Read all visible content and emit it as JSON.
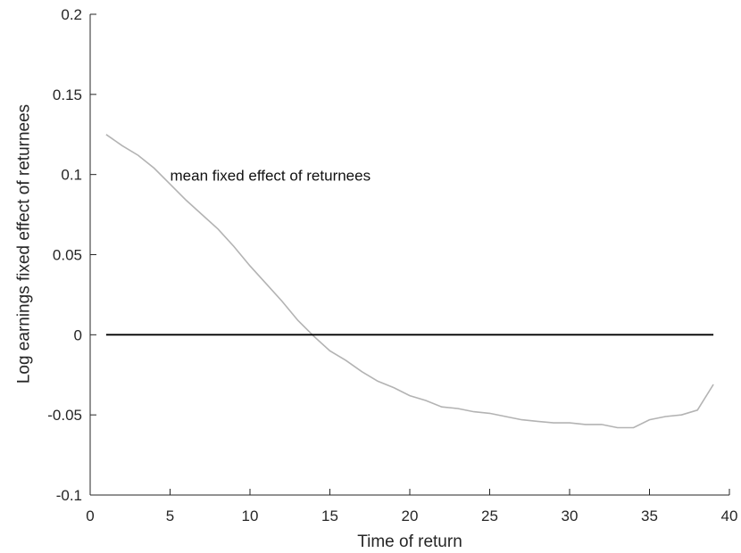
{
  "chart_data": {
    "type": "line",
    "xlabel": "Time of return",
    "ylabel": "Log earnings fixed effect of returnees",
    "xlim": [
      0,
      40
    ],
    "ylim": [
      -0.1,
      0.2
    ],
    "x_ticks": [
      0,
      5,
      10,
      15,
      20,
      25,
      30,
      35,
      40
    ],
    "x_tick_labels": [
      "0",
      "5",
      "10",
      "15",
      "20",
      "25",
      "30",
      "35",
      "40"
    ],
    "y_ticks": [
      -0.1,
      -0.05,
      0,
      0.05,
      0.1,
      0.15,
      0.2
    ],
    "y_tick_labels": [
      "-0.1",
      "-0.05",
      "0",
      "0.05",
      "0.1",
      "0.15",
      "0.2"
    ],
    "grid": false,
    "box": false,
    "annotations": [
      {
        "text": "mean fixed effect of returnees",
        "x": 5,
        "y": 0.1
      }
    ],
    "series": [
      {
        "color": "#b3b3b3",
        "x": [
          1,
          2,
          3,
          4,
          5,
          6,
          7,
          8,
          9,
          10,
          11,
          12,
          13,
          14,
          15,
          16,
          17,
          18,
          19,
          20,
          21,
          22,
          23,
          24,
          25,
          26,
          27,
          28,
          29,
          30,
          31,
          32,
          33,
          34,
          35,
          36,
          37,
          38,
          39
        ],
        "y": [
          0.125,
          0.118,
          0.112,
          0.104,
          0.094,
          0.084,
          0.075,
          0.066,
          0.055,
          0.043,
          0.032,
          0.021,
          0.009,
          -0.001,
          -0.01,
          -0.016,
          -0.023,
          -0.029,
          -0.033,
          -0.038,
          -0.041,
          -0.045,
          -0.046,
          -0.048,
          -0.049,
          -0.051,
          -0.053,
          -0.054,
          -0.055,
          -0.055,
          -0.056,
          -0.056,
          -0.058,
          -0.058,
          -0.053,
          -0.051,
          -0.05,
          -0.047,
          -0.031
        ]
      },
      {
        "color": "#000000",
        "x": [
          1,
          39
        ],
        "y": [
          0,
          0
        ]
      }
    ]
  }
}
